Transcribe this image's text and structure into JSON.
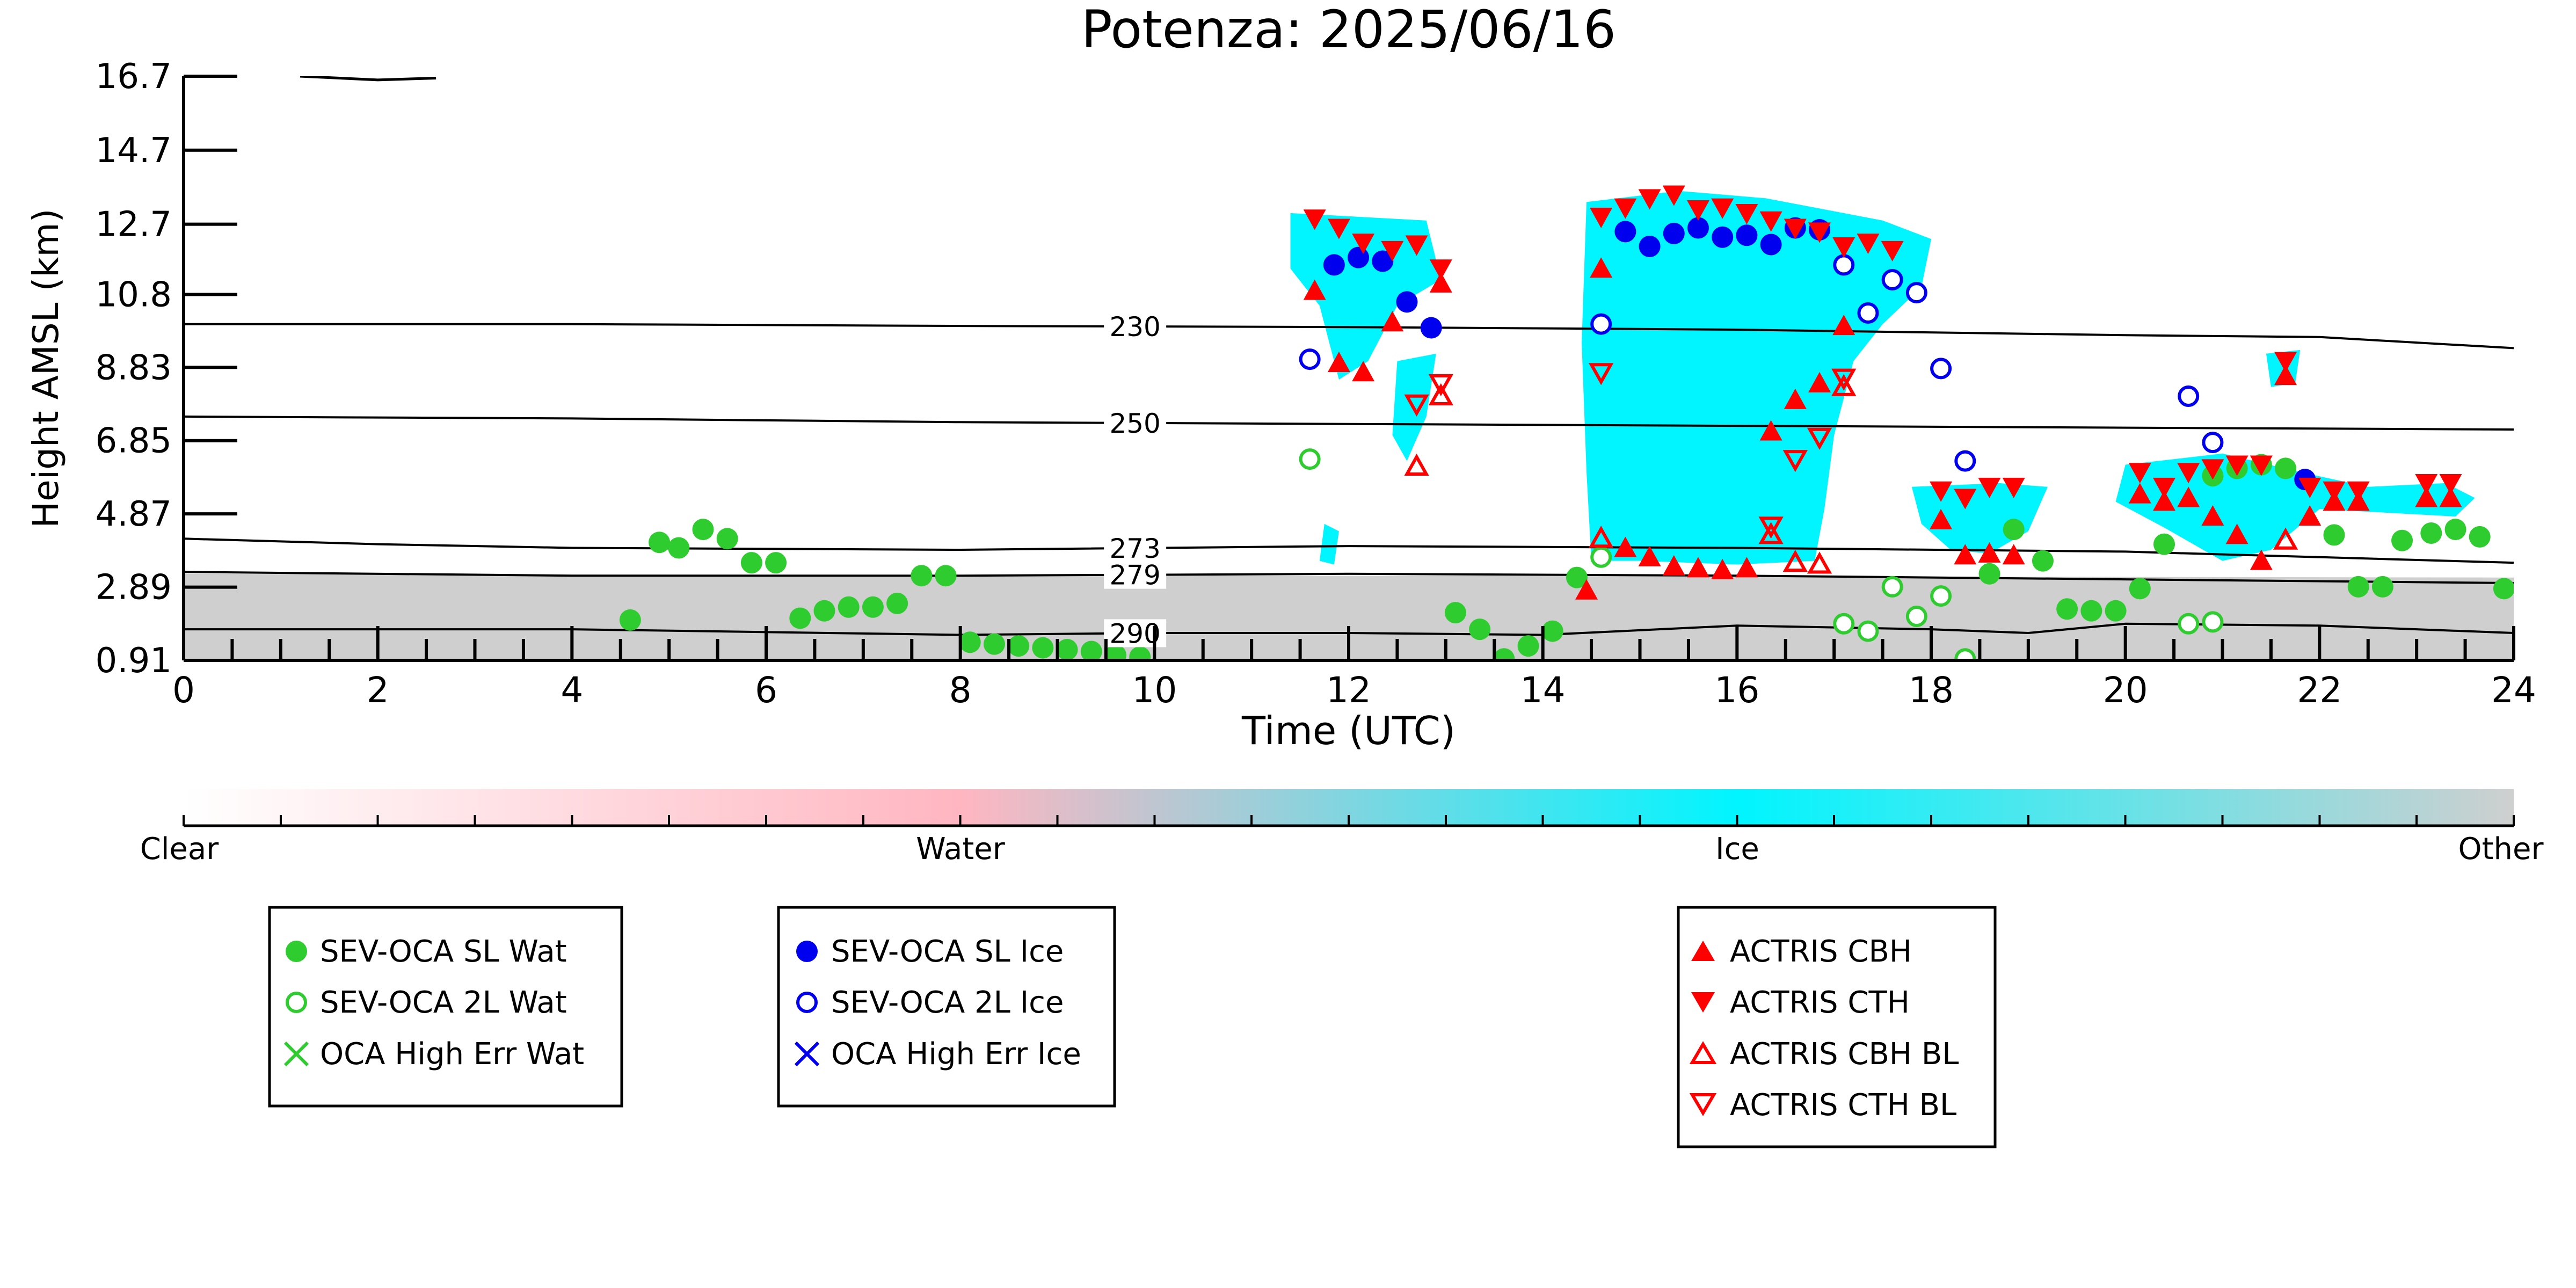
{
  "chart_data": {
    "type": "scatter",
    "title": "Potenza: 2025/06/16",
    "xlabel": "Time (UTC)",
    "ylabel": "Height AMSL (km)",
    "xlim": [
      0,
      24
    ],
    "ylim": [
      0.91,
      16.7
    ],
    "x_ticks": [
      "0",
      "2",
      "4",
      "6",
      "8",
      "10",
      "12",
      "14",
      "16",
      "18",
      "20",
      "22",
      "24"
    ],
    "y_ticks": [
      "0.91",
      "2.89",
      "4.87",
      "6.85",
      "8.83",
      "10.8",
      "12.7",
      "14.7",
      "16.7"
    ],
    "colorbar": {
      "labels": [
        "Clear",
        "Water",
        "Ice",
        "Other"
      ],
      "colors": [
        "#ffffff",
        "#ffb6c1",
        "#00f5ff",
        "#cfcfcf"
      ]
    },
    "colors": {
      "water": "#2ecc2e",
      "ice": "#0000ee",
      "actris": "#ff0000",
      "ice_cloud": "#00f5ff",
      "other": "#cfcfcf",
      "water_cloud": "#ffb6c1"
    },
    "isotherms": [
      {
        "label": "230",
        "label_x": 9.8,
        "points": [
          [
            0,
            10.0
          ],
          [
            4,
            10.0
          ],
          [
            8,
            9.95
          ],
          [
            12,
            9.92
          ],
          [
            16,
            9.85
          ],
          [
            20,
            9.7
          ],
          [
            22,
            9.65
          ],
          [
            24,
            9.35
          ]
        ]
      },
      {
        "label": "250",
        "label_x": 9.8,
        "points": [
          [
            0,
            7.5
          ],
          [
            4,
            7.45
          ],
          [
            8,
            7.35
          ],
          [
            12,
            7.3
          ],
          [
            16,
            7.25
          ],
          [
            20,
            7.2
          ],
          [
            24,
            7.15
          ]
        ]
      },
      {
        "label": "273",
        "label_x": 9.8,
        "points": [
          [
            0,
            4.2
          ],
          [
            2,
            4.05
          ],
          [
            4,
            3.95
          ],
          [
            8,
            3.9
          ],
          [
            12,
            4.0
          ],
          [
            16,
            3.95
          ],
          [
            20,
            3.85
          ],
          [
            24,
            3.55
          ]
        ]
      },
      {
        "label": "279",
        "label_x": 9.8,
        "points": [
          [
            0,
            3.3
          ],
          [
            4,
            3.2
          ],
          [
            8,
            3.2
          ],
          [
            12,
            3.25
          ],
          [
            16,
            3.2
          ],
          [
            20,
            3.1
          ],
          [
            24,
            3.0
          ]
        ]
      },
      {
        "label": "290",
        "label_x": 9.8,
        "points": [
          [
            0,
            1.75
          ],
          [
            4,
            1.75
          ],
          [
            8,
            1.6
          ],
          [
            10,
            1.65
          ],
          [
            12,
            1.65
          ],
          [
            14,
            1.6
          ],
          [
            16,
            1.85
          ],
          [
            18,
            1.75
          ],
          [
            19,
            1.65
          ],
          [
            20,
            1.9
          ],
          [
            22,
            1.85
          ],
          [
            24,
            1.65
          ]
        ]
      }
    ],
    "clouds": [
      {
        "class": "other",
        "polygon": [
          [
            0,
            0.91
          ],
          [
            0,
            3.25
          ],
          [
            24,
            3.15
          ],
          [
            24,
            0.91
          ]
        ]
      },
      {
        "class": "ice_cloud",
        "polygon": [
          [
            11.4,
            13.0
          ],
          [
            12.8,
            12.8
          ],
          [
            12.95,
            11.2
          ],
          [
            12.5,
            10.5
          ],
          [
            12.2,
            9.0
          ],
          [
            11.9,
            8.5
          ],
          [
            11.7,
            10.5
          ],
          [
            11.4,
            11.5
          ]
        ]
      },
      {
        "class": "ice_cloud",
        "polygon": [
          [
            12.5,
            9.0
          ],
          [
            12.9,
            9.2
          ],
          [
            12.8,
            7.5
          ],
          [
            12.6,
            6.3
          ],
          [
            12.45,
            7.0
          ]
        ]
      },
      {
        "class": "ice_cloud",
        "polygon": [
          [
            14.45,
            13.3
          ],
          [
            15.4,
            13.6
          ],
          [
            16.3,
            13.4
          ],
          [
            17.5,
            12.8
          ],
          [
            18.0,
            12.3
          ],
          [
            17.9,
            11.0
          ],
          [
            17.5,
            10.0
          ],
          [
            17.2,
            9.0
          ],
          [
            17.0,
            7.0
          ],
          [
            16.9,
            5.0
          ],
          [
            16.8,
            3.6
          ],
          [
            16.0,
            3.5
          ],
          [
            15.0,
            3.6
          ],
          [
            14.5,
            3.6
          ],
          [
            14.45,
            6.0
          ],
          [
            14.4,
            9.5
          ]
        ]
      },
      {
        "class": "ice_cloud",
        "polygon": [
          [
            17.8,
            5.6
          ],
          [
            18.7,
            5.7
          ],
          [
            19.2,
            5.6
          ],
          [
            19.0,
            4.4
          ],
          [
            18.6,
            3.8
          ],
          [
            18.2,
            3.9
          ],
          [
            17.9,
            4.6
          ]
        ]
      },
      {
        "class": "ice_cloud",
        "polygon": [
          [
            20.0,
            6.2
          ],
          [
            21.0,
            6.5
          ],
          [
            21.8,
            6.0
          ],
          [
            22.5,
            5.6
          ],
          [
            23.3,
            5.7
          ],
          [
            23.6,
            5.3
          ],
          [
            23.4,
            4.8
          ],
          [
            22.0,
            5.0
          ],
          [
            21.5,
            3.9
          ],
          [
            21.0,
            3.6
          ],
          [
            20.4,
            4.5
          ],
          [
            19.9,
            5.2
          ]
        ]
      },
      {
        "class": "ice_cloud",
        "polygon": [
          [
            21.45,
            9.2
          ],
          [
            21.8,
            9.3
          ],
          [
            21.75,
            8.4
          ],
          [
            21.5,
            8.3
          ]
        ]
      },
      {
        "class": "ice_cloud",
        "polygon": [
          [
            11.75,
            4.6
          ],
          [
            11.9,
            4.4
          ],
          [
            11.85,
            3.5
          ],
          [
            11.7,
            3.6
          ]
        ]
      }
    ],
    "contrail": [
      [
        1.2,
        16.7
      ],
      [
        2.0,
        16.6
      ],
      [
        2.6,
        16.65
      ]
    ],
    "series": [
      {
        "name": "SEV-OCA SL Wat",
        "marker": "circle-filled",
        "color": "#2ecc2e",
        "points": [
          [
            4.6,
            2.0
          ],
          [
            4.9,
            4.1
          ],
          [
            5.1,
            3.95
          ],
          [
            5.35,
            4.45
          ],
          [
            5.6,
            4.2
          ],
          [
            5.85,
            3.55
          ],
          [
            6.1,
            3.55
          ],
          [
            6.35,
            2.05
          ],
          [
            6.6,
            2.25
          ],
          [
            6.85,
            2.35
          ],
          [
            7.1,
            2.35
          ],
          [
            7.35,
            2.45
          ],
          [
            7.6,
            3.2
          ],
          [
            7.85,
            3.2
          ],
          [
            8.1,
            1.4
          ],
          [
            8.35,
            1.35
          ],
          [
            8.6,
            1.3
          ],
          [
            8.85,
            1.25
          ],
          [
            9.1,
            1.2
          ],
          [
            9.35,
            1.15
          ],
          [
            9.6,
            1.05
          ],
          [
            9.85,
            1.0
          ],
          [
            13.1,
            2.2
          ],
          [
            13.35,
            1.75
          ],
          [
            13.6,
            0.95
          ],
          [
            13.85,
            1.3
          ],
          [
            14.1,
            1.7
          ],
          [
            14.35,
            3.15
          ],
          [
            18.6,
            3.25
          ],
          [
            18.85,
            4.45
          ],
          [
            19.15,
            3.6
          ],
          [
            19.4,
            2.3
          ],
          [
            19.65,
            2.25
          ],
          [
            19.9,
            2.25
          ],
          [
            20.15,
            2.85
          ],
          [
            20.4,
            4.05
          ],
          [
            20.9,
            5.9
          ],
          [
            21.15,
            6.1
          ],
          [
            21.4,
            6.2
          ],
          [
            21.65,
            6.1
          ],
          [
            22.15,
            4.3
          ],
          [
            22.4,
            2.9
          ],
          [
            22.65,
            2.9
          ],
          [
            22.85,
            4.15
          ],
          [
            23.15,
            4.35
          ],
          [
            23.4,
            4.45
          ],
          [
            23.65,
            4.25
          ],
          [
            23.9,
            2.85
          ]
        ]
      },
      {
        "name": "SEV-OCA 2L Wat",
        "marker": "circle-open",
        "color": "#2ecc2e",
        "points": [
          [
            11.6,
            6.35
          ],
          [
            14.6,
            3.7
          ],
          [
            17.1,
            1.9
          ],
          [
            17.35,
            1.7
          ],
          [
            17.6,
            2.9
          ],
          [
            17.85,
            2.1
          ],
          [
            18.1,
            2.65
          ],
          [
            18.35,
            0.95
          ],
          [
            20.65,
            1.9
          ],
          [
            20.9,
            1.95
          ]
        ]
      },
      {
        "name": "OCA High Err Wat",
        "marker": "x",
        "color": "#2ecc2e",
        "points": []
      },
      {
        "name": "SEV-OCA SL Ice",
        "marker": "circle-filled",
        "color": "#0000ee",
        "points": [
          [
            11.85,
            11.6
          ],
          [
            12.1,
            11.8
          ],
          [
            12.35,
            11.7
          ],
          [
            12.6,
            10.6
          ],
          [
            12.85,
            9.9
          ],
          [
            14.85,
            12.5
          ],
          [
            15.1,
            12.1
          ],
          [
            15.35,
            12.45
          ],
          [
            15.6,
            12.6
          ],
          [
            15.85,
            12.35
          ],
          [
            16.1,
            12.4
          ],
          [
            16.35,
            12.15
          ],
          [
            16.6,
            12.6
          ],
          [
            16.85,
            12.55
          ],
          [
            21.85,
            5.8
          ]
        ]
      },
      {
        "name": "SEV-OCA 2L Ice",
        "marker": "circle-open",
        "color": "#0000ee",
        "points": [
          [
            11.6,
            9.05
          ],
          [
            14.6,
            10.0
          ],
          [
            17.1,
            11.6
          ],
          [
            17.35,
            10.3
          ],
          [
            17.6,
            11.2
          ],
          [
            17.85,
            10.85
          ],
          [
            18.1,
            8.8
          ],
          [
            18.35,
            6.3
          ],
          [
            20.65,
            8.05
          ],
          [
            20.9,
            6.8
          ]
        ]
      },
      {
        "name": "OCA High Err Ice",
        "marker": "x",
        "color": "#0000ee",
        "points": []
      },
      {
        "name": "ACTRIS CBH",
        "marker": "triangle-up-filled",
        "color": "#ff0000",
        "points": [
          [
            11.65,
            10.9
          ],
          [
            11.9,
            8.95
          ],
          [
            12.15,
            8.7
          ],
          [
            12.45,
            10.05
          ],
          [
            12.95,
            11.1
          ],
          [
            14.45,
            2.8
          ],
          [
            14.6,
            11.5
          ],
          [
            14.85,
            3.95
          ],
          [
            15.1,
            3.7
          ],
          [
            15.35,
            3.45
          ],
          [
            15.6,
            3.4
          ],
          [
            15.85,
            3.35
          ],
          [
            16.1,
            3.4
          ],
          [
            16.35,
            7.1
          ],
          [
            16.6,
            7.95
          ],
          [
            16.85,
            8.4
          ],
          [
            17.1,
            9.95
          ],
          [
            18.1,
            4.7
          ],
          [
            18.35,
            3.75
          ],
          [
            18.6,
            3.8
          ],
          [
            18.85,
            3.75
          ],
          [
            20.15,
            5.4
          ],
          [
            20.4,
            5.2
          ],
          [
            20.65,
            5.3
          ],
          [
            20.9,
            4.8
          ],
          [
            21.15,
            4.3
          ],
          [
            21.4,
            3.6
          ],
          [
            21.65,
            8.6
          ],
          [
            21.9,
            4.8
          ],
          [
            22.15,
            5.2
          ],
          [
            22.4,
            5.2
          ],
          [
            23.1,
            5.3
          ],
          [
            23.35,
            5.3
          ]
        ]
      },
      {
        "name": "ACTRIS CTH",
        "marker": "triangle-down-filled",
        "color": "#ff0000",
        "points": [
          [
            11.65,
            12.85
          ],
          [
            11.9,
            12.6
          ],
          [
            12.15,
            12.2
          ],
          [
            12.45,
            12.0
          ],
          [
            12.7,
            12.15
          ],
          [
            12.95,
            11.5
          ],
          [
            14.6,
            12.9
          ],
          [
            14.85,
            13.15
          ],
          [
            15.1,
            13.4
          ],
          [
            15.35,
            13.5
          ],
          [
            15.6,
            13.1
          ],
          [
            15.85,
            13.15
          ],
          [
            16.1,
            13.0
          ],
          [
            16.35,
            12.8
          ],
          [
            16.6,
            12.6
          ],
          [
            16.85,
            12.5
          ],
          [
            17.1,
            12.1
          ],
          [
            17.35,
            12.2
          ],
          [
            17.6,
            12.0
          ],
          [
            18.1,
            5.5
          ],
          [
            18.35,
            5.3
          ],
          [
            18.6,
            5.6
          ],
          [
            18.85,
            5.6
          ],
          [
            20.15,
            6.0
          ],
          [
            20.4,
            5.6
          ],
          [
            20.65,
            6.0
          ],
          [
            20.9,
            6.1
          ],
          [
            21.15,
            6.2
          ],
          [
            21.4,
            6.2
          ],
          [
            21.65,
            9.0
          ],
          [
            21.9,
            5.6
          ],
          [
            22.15,
            5.5
          ],
          [
            22.4,
            5.5
          ],
          [
            23.1,
            5.7
          ],
          [
            23.35,
            5.7
          ]
        ]
      },
      {
        "name": "ACTRIS CBH BL",
        "marker": "triangle-up-open",
        "color": "#ff0000",
        "points": [
          [
            12.7,
            6.15
          ],
          [
            12.95,
            8.05
          ],
          [
            14.6,
            4.2
          ],
          [
            16.35,
            4.3
          ],
          [
            16.6,
            3.55
          ],
          [
            16.85,
            3.5
          ],
          [
            17.1,
            8.3
          ],
          [
            21.65,
            4.15
          ]
        ]
      },
      {
        "name": "ACTRIS CTH BL",
        "marker": "triangle-down-open",
        "color": "#ff0000",
        "points": [
          [
            12.7,
            7.85
          ],
          [
            12.95,
            8.4
          ],
          [
            14.6,
            8.7
          ],
          [
            16.35,
            4.55
          ],
          [
            16.6,
            6.35
          ],
          [
            16.85,
            6.95
          ],
          [
            17.1,
            8.55
          ]
        ]
      }
    ]
  },
  "legends": [
    {
      "entries": [
        "SEV-OCA SL Wat",
        "SEV-OCA 2L Wat",
        "OCA High Err Wat"
      ]
    },
    {
      "entries": [
        "SEV-OCA SL Ice",
        "SEV-OCA 2L Ice",
        "OCA High Err Ice"
      ]
    },
    {
      "entries": [
        "ACTRIS CBH",
        "ACTRIS CTH",
        "ACTRIS CBH BL",
        "ACTRIS CTH BL"
      ]
    }
  ]
}
